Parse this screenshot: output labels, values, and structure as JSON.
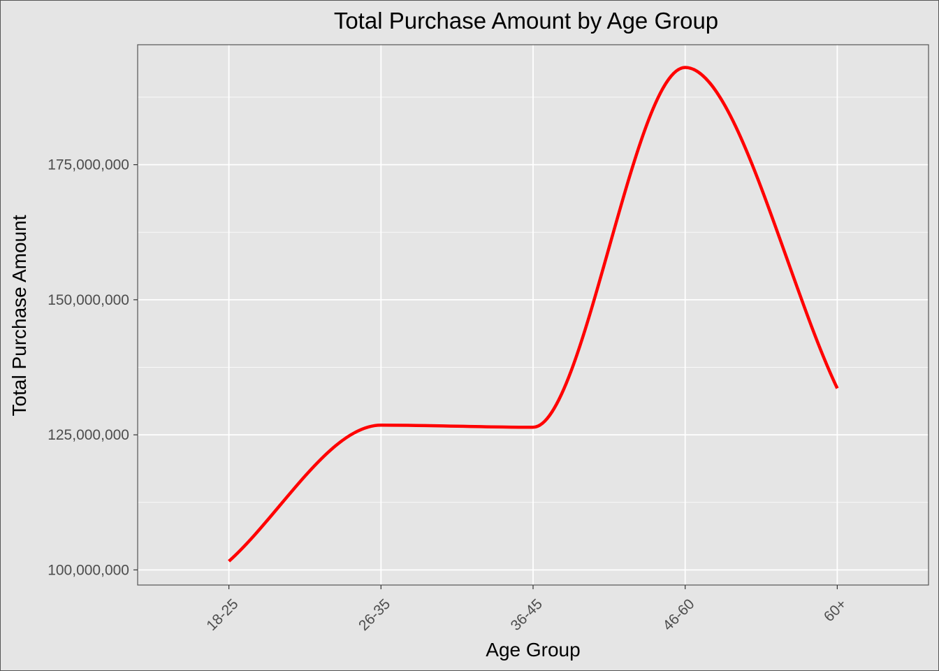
{
  "chart_data": {
    "type": "line",
    "title": "Total Purchase Amount by Age Group",
    "xlabel": "Age Group",
    "ylabel": "Total Purchase Amount",
    "categories": [
      "18-25",
      "26-35",
      "36-45",
      "46-60",
      "60+"
    ],
    "series": [
      {
        "values": [
          101600000,
          126800000,
          126400000,
          193000000,
          133600000
        ]
      }
    ],
    "smoothed": true,
    "line_color": "#ff0000",
    "ylim": [
      97200000,
      197200000
    ],
    "y_ticks": [
      100000000,
      125000000,
      150000000,
      175000000
    ],
    "y_tick_labels": [
      "100,000,000",
      "125,000,000",
      "150,000,000",
      "175,000,000"
    ],
    "x_tick_rotation": -45,
    "grid": true,
    "legend": "none",
    "colors": {
      "background": "#e5e5e5",
      "panel": "#e5e5e5",
      "grid": "#ffffff",
      "line": "#ff0000"
    }
  }
}
